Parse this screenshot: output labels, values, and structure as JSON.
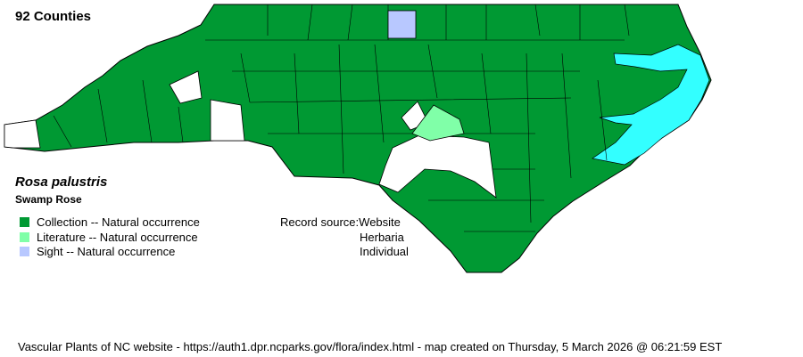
{
  "header": {
    "county_count": "92 Counties"
  },
  "species": {
    "scientific_name": "Rosa palustris",
    "common_name": "Swamp Rose"
  },
  "legend": [
    {
      "label": "Collection -- Natural occurrence",
      "color": "#009933"
    },
    {
      "label": "Literature -- Natural occurrence",
      "color": "#80ffa8"
    },
    {
      "label": "Sight -- Natural occurrence",
      "color": "#b8c8ff"
    }
  ],
  "record_source": {
    "label": "Record source:",
    "values": [
      "Website",
      "Herbaria",
      "Individual"
    ]
  },
  "map": {
    "colors": {
      "collection": "#009933",
      "literature": "#80ffa8",
      "sight": "#b8c8ff",
      "water": "#33ffff",
      "no_record": "#ffffff"
    }
  },
  "footer": "Vascular Plants of NC website - https://auth1.dpr.ncparks.gov/flora/index.html - map created on Thursday, 5 March 2026 @ 06:21:59 EST"
}
